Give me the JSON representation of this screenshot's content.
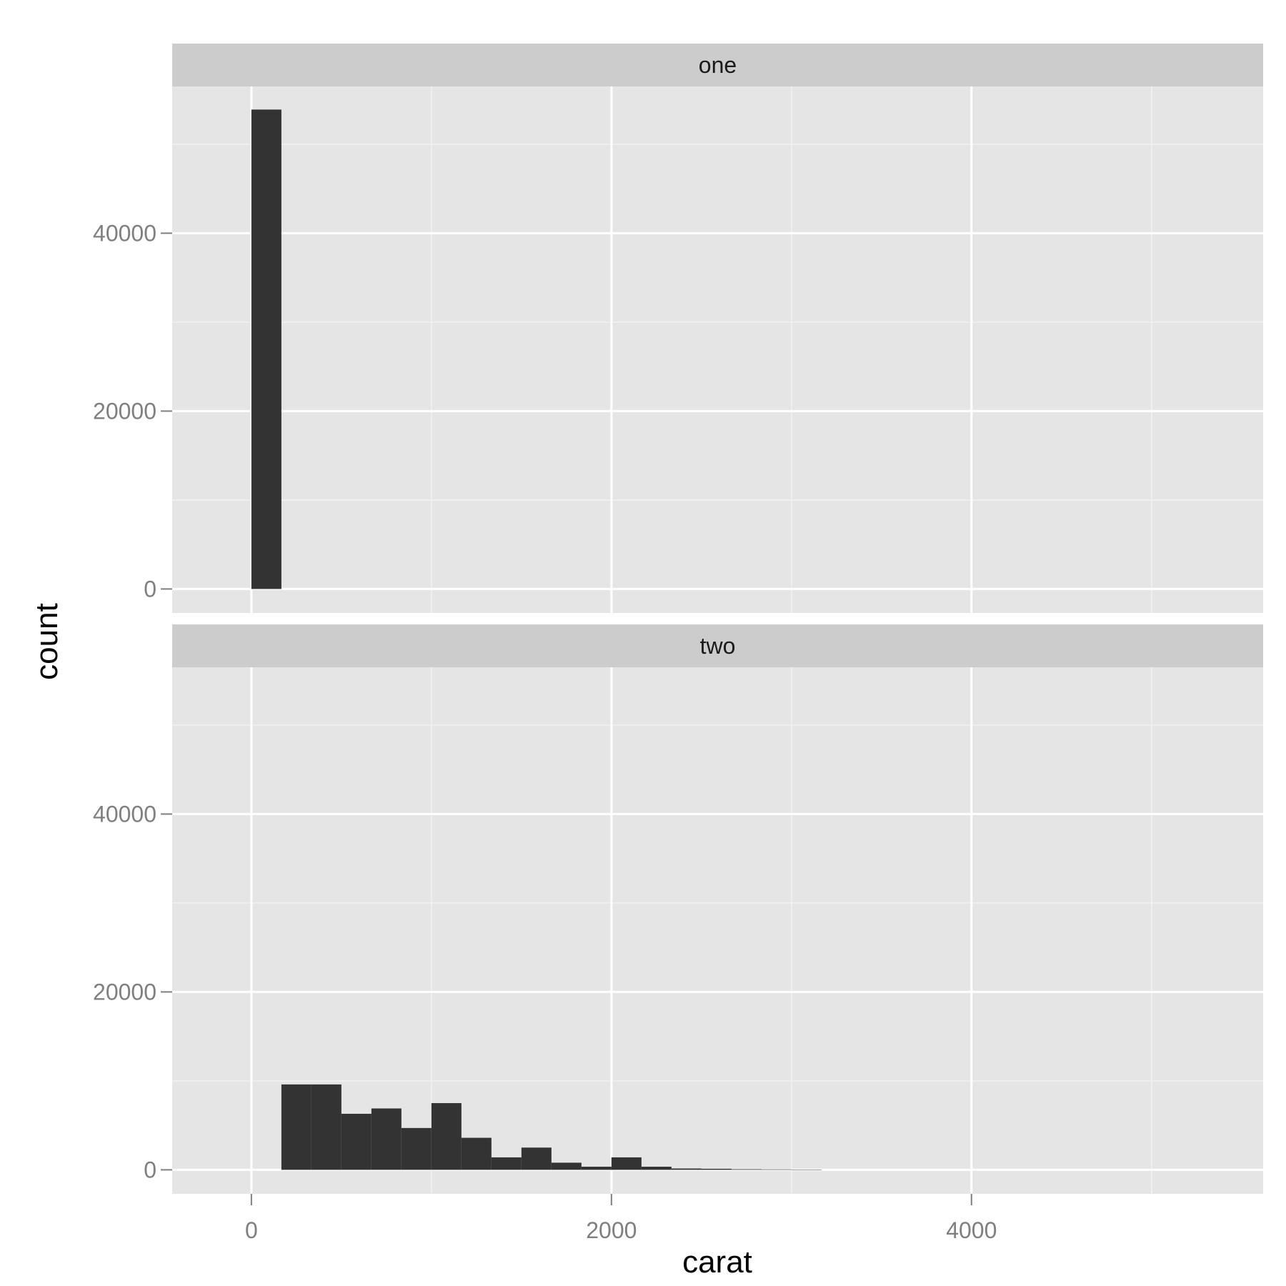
{
  "chart_data": {
    "type": "bar",
    "xlabel": "carat",
    "ylabel": "count",
    "xlim": [
      -440,
      5620
    ],
    "ylim": [
      -2700,
      56500
    ],
    "x_ticks": [
      0,
      2000,
      4000
    ],
    "x_minor_ticks": [
      1000,
      3000,
      5000
    ],
    "y_ticks": [
      0,
      20000,
      40000
    ],
    "y_minor_ticks": [
      10000,
      30000,
      50000
    ],
    "grid": true,
    "bin_width": 166.67,
    "panels": [
      {
        "strip": "one",
        "bins": [
          {
            "x0": 0,
            "x1": 166.67,
            "count": 53900
          }
        ]
      },
      {
        "strip": "two",
        "bins": [
          {
            "x0": 166.67,
            "x1": 333.33,
            "count": 9600
          },
          {
            "x0": 333.33,
            "x1": 500,
            "count": 9600
          },
          {
            "x0": 500,
            "x1": 666.67,
            "count": 6300
          },
          {
            "x0": 666.67,
            "x1": 833.33,
            "count": 6900
          },
          {
            "x0": 833.33,
            "x1": 1000,
            "count": 4700
          },
          {
            "x0": 1000,
            "x1": 1166.67,
            "count": 7500
          },
          {
            "x0": 1166.67,
            "x1": 1333.33,
            "count": 3600
          },
          {
            "x0": 1333.33,
            "x1": 1500,
            "count": 1400
          },
          {
            "x0": 1500,
            "x1": 1666.67,
            "count": 2500
          },
          {
            "x0": 1666.67,
            "x1": 1833.33,
            "count": 800
          },
          {
            "x0": 1833.33,
            "x1": 2000,
            "count": 350
          },
          {
            "x0": 2000,
            "x1": 2166.67,
            "count": 1400
          },
          {
            "x0": 2166.67,
            "x1": 2333.33,
            "count": 350
          },
          {
            "x0": 2333.33,
            "x1": 2500,
            "count": 150
          },
          {
            "x0": 2500,
            "x1": 2666.67,
            "count": 120
          },
          {
            "x0": 2666.67,
            "x1": 2833.33,
            "count": 70
          },
          {
            "x0": 2833.33,
            "x1": 3000,
            "count": 50
          },
          {
            "x0": 3000,
            "x1": 3166.67,
            "count": 30
          }
        ]
      }
    ],
    "colors": {
      "bar": "#333333",
      "panel_bg": "#e5e5e5",
      "strip_bg": "#cccccc",
      "grid_major": "#ffffff",
      "grid_minor": "#f2f2f2",
      "tick": "#7f7f7f"
    }
  }
}
